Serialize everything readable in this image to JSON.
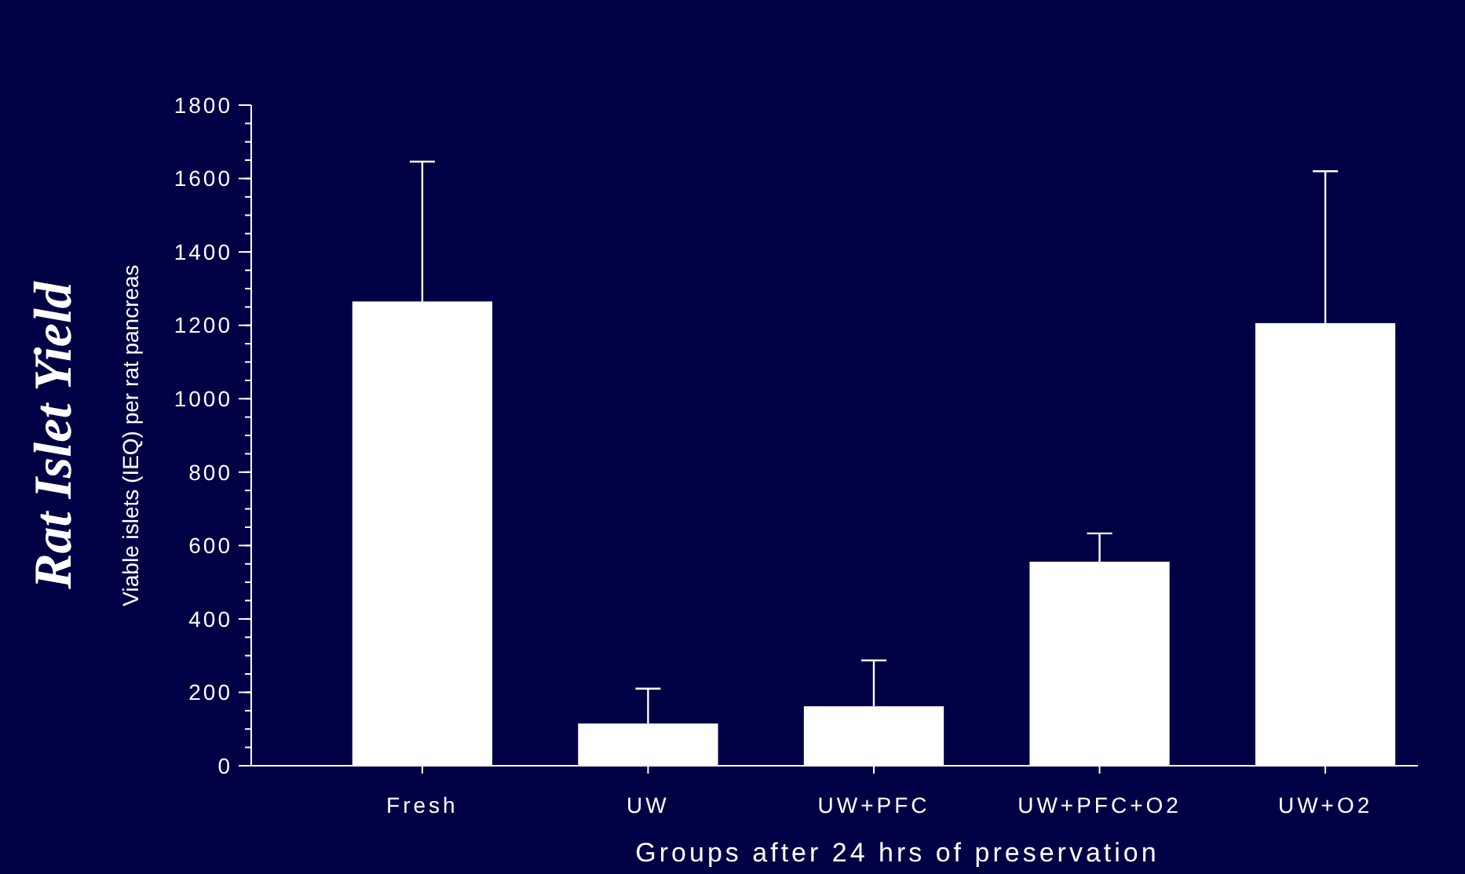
{
  "chart_data": {
    "type": "bar",
    "title": "Rat Islet Yield",
    "xlabel": "Groups after 24 hrs of preservation",
    "ylabel": "Viable islets (IEQ) per rat pancreas",
    "categories": [
      "Fresh",
      "UW",
      "UW+PFC",
      "UW+PFC+O2",
      "UW+O2"
    ],
    "values": [
      1265,
      115,
      162,
      556,
      1206
    ],
    "errors": [
      [
        1265,
        1646
      ],
      [
        115,
        210
      ],
      [
        162,
        287
      ],
      [
        556,
        633
      ],
      [
        1206,
        1620
      ]
    ],
    "color": "#ffffff",
    "ylim": [
      0,
      1800
    ],
    "yticks": [
      0,
      200,
      400,
      600,
      800,
      1000,
      1200,
      1400,
      1600,
      1800
    ],
    "grid": false
  }
}
